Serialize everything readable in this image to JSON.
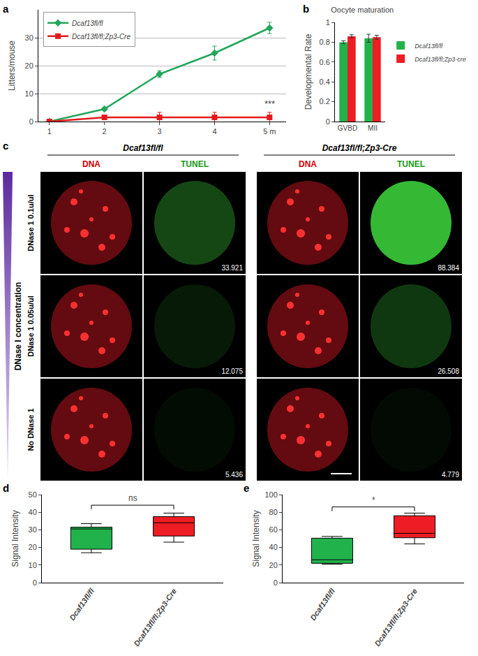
{
  "chart_data": [
    {
      "panel": "a",
      "type": "line",
      "x": [
        1,
        2,
        3,
        4,
        5
      ],
      "xlim": [
        0.8,
        5.3
      ],
      "xticks": [
        1,
        2,
        3,
        4,
        {
          "value": 5,
          "label": "5 m"
        }
      ],
      "ylim": [
        0,
        40
      ],
      "yticks": [
        0,
        10,
        20,
        30
      ],
      "y_label": "Litters/mouse",
      "grid": true,
      "legend": "top-left",
      "series": [
        {
          "name": "Dcaf13fl/fl",
          "color": "#21a65b",
          "marker": "diamond",
          "values": [
            0,
            4.5,
            17,
            24.5,
            33.5
          ],
          "errors": [
            0,
            0.5,
            1.2,
            2.5,
            2
          ]
        },
        {
          "name": "Dcaf13fl/fl;Zp3-Cre",
          "color": "#e31a1c",
          "marker": "square",
          "values": [
            0,
            1.5,
            1.5,
            1.5,
            1.5
          ],
          "errors": [
            0,
            0,
            1.8,
            1.8,
            1.8
          ]
        }
      ],
      "annotations": [
        {
          "text": "***",
          "x": 5,
          "y": 4
        }
      ]
    },
    {
      "panel": "b",
      "type": "bar",
      "title": "Oocyte maturation",
      "categories": [
        "GVBD",
        "MII"
      ],
      "ylim": [
        0,
        1
      ],
      "yticks": [
        0,
        0.2,
        0.4,
        0.6,
        0.8,
        1
      ],
      "y_label": "Developmental Rate",
      "legend": "right",
      "series": [
        {
          "name": "Dcaf13fl/fl",
          "color": "#22b24c",
          "values": [
            0.8,
            0.84
          ],
          "errors": [
            0.015,
            0.04
          ]
        },
        {
          "name": "Dcaf13fl/fl;Zp3-cre",
          "color": "#ee1c24",
          "values": [
            0.86,
            0.85
          ],
          "errors": [
            0.015,
            0.02
          ]
        }
      ]
    },
    {
      "panel": "d",
      "type": "box",
      "categories": [
        "Dcaf13fl/fl",
        "Dcaf13fl/fl;Zp3-Cre"
      ],
      "ylim": [
        0,
        50
      ],
      "yticks": [
        0,
        10,
        20,
        30,
        40,
        50
      ],
      "y_label": "Signal Intensity",
      "boxes": [
        {
          "color": "#22b24c",
          "min": 17,
          "q1": 19,
          "median": 30.5,
          "q3": 31.5,
          "max": 33.5
        },
        {
          "color": "#ee1c24",
          "min": 23,
          "q1": 26.5,
          "median": 34,
          "q3": 37.5,
          "max": 39.5
        }
      ],
      "annotations": [
        {
          "text": "ns",
          "x": 0.5,
          "y": 44
        }
      ]
    },
    {
      "panel": "e",
      "type": "box",
      "categories": [
        "Dcaf13fl/fl",
        "Dcaf13fl/fl;Zp3-Cre"
      ],
      "ylim": [
        0,
        100
      ],
      "yticks": [
        0,
        20,
        40,
        60,
        80,
        100
      ],
      "y_label": "Signal Intensity",
      "boxes": [
        {
          "color": "#22b24c",
          "min": 21,
          "q1": 22,
          "median": 26,
          "q3": 50.5,
          "max": 52.5
        },
        {
          "color": "#ee1c24",
          "min": 44,
          "q1": 51,
          "median": 56,
          "q3": 76,
          "max": 79
        }
      ],
      "annotations": [
        {
          "text": "*",
          "x": 0.5,
          "y": 86
        }
      ]
    }
  ],
  "panel_c": {
    "panel": "c",
    "axis_label": "DNase I concentration",
    "genotypes": [
      "Dcaf13fl/fl",
      "Dcaf13fl/fl;Zp3-Cre"
    ],
    "channels": [
      "DNA",
      "TUNEL"
    ],
    "rows": [
      {
        "label": "DNase 1 0.1u/ul",
        "values": [
          33.921,
          88.384
        ]
      },
      {
        "label": "DNase 1 0.05u/ul",
        "values": [
          12.075,
          26.508
        ]
      },
      {
        "label": "No DNase 1",
        "values": [
          5.436,
          4.779
        ]
      }
    ]
  }
}
